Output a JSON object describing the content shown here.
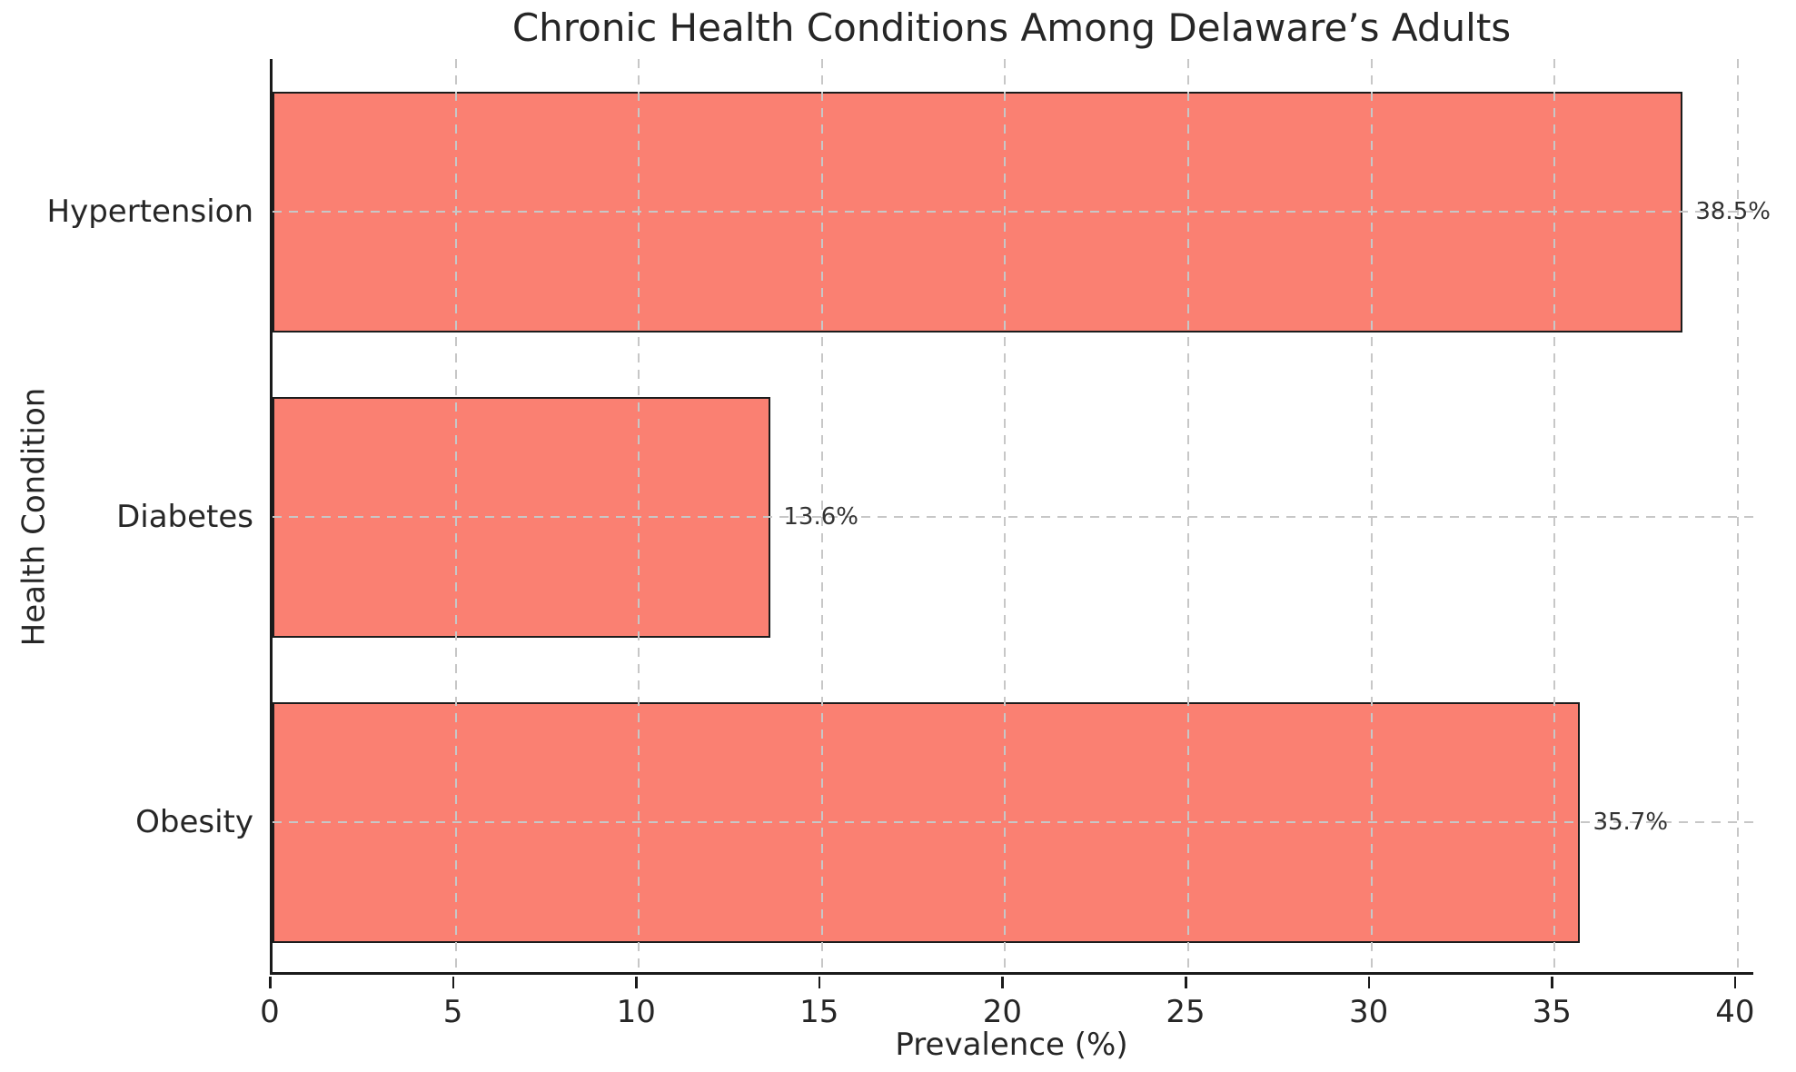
{
  "chart_data": {
    "type": "bar",
    "orientation": "horizontal",
    "title": "Chronic Health Conditions Among Delaware’s Adults",
    "xlabel": "Prevalence (%)",
    "ylabel": "Health Condition",
    "categories": [
      "Hypertension",
      "Diabetes",
      "Obesity"
    ],
    "values": [
      38.5,
      13.6,
      35.7
    ],
    "value_labels": [
      "38.5%",
      "13.6%",
      "35.7%"
    ],
    "xticks": [
      0,
      5,
      10,
      15,
      20,
      25,
      30,
      35,
      40
    ],
    "xlim": [
      0,
      40.5
    ],
    "grid": true,
    "grid_style": "dashed",
    "legend": "none",
    "bar_color": "#FA8072",
    "bar_edge_color": "#1c1c1c",
    "grid_color": "#c7c7c7",
    "text_color": "#262626"
  }
}
